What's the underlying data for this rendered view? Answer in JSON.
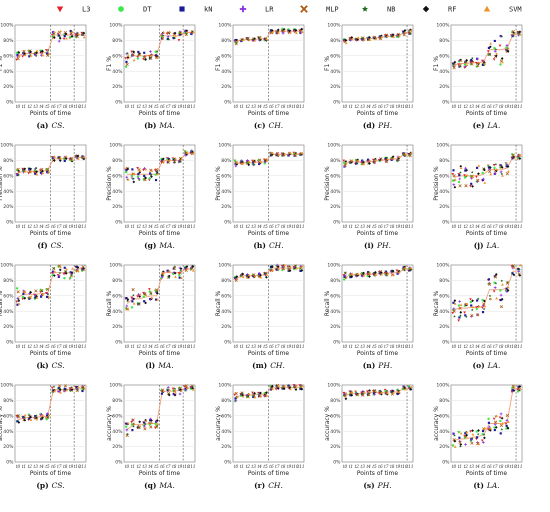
{
  "legend": {
    "entries": [
      {
        "name": "L3",
        "marker": "triangle-down",
        "color": "#e8202a"
      },
      {
        "name": "DT",
        "marker": "circle",
        "color": "#3ee84a"
      },
      {
        "name": "kN",
        "marker": "square",
        "color": "#1a1a9a"
      },
      {
        "name": "LR",
        "marker": "plus",
        "color": "#8a2be2"
      },
      {
        "name": "MLP",
        "marker": "x",
        "color": "#b05a10"
      },
      {
        "name": "NB",
        "marker": "star",
        "color": "#1a6b1a"
      },
      {
        "name": "RF",
        "marker": "diamond",
        "color": "#111111"
      },
      {
        "name": "SVM",
        "marker": "triangle-up",
        "color": "#f0922a"
      }
    ]
  },
  "chart_data": [
    {
      "type": "scatter",
      "caption_tag": "(a)",
      "caption_name": "CS.",
      "ylabel": "F1 %",
      "xlabel": "Points of time",
      "ylim": [
        0,
        100
      ],
      "yticks": [
        "0%",
        "20%",
        "40%",
        "60%",
        "80%",
        "100%"
      ],
      "xticks": [
        "t0",
        "t1",
        "t2",
        "t3",
        "t4",
        "t5",
        "t6",
        "t7",
        "t8",
        "t9",
        "t10",
        "t11"
      ],
      "vlines": [
        5,
        9
      ],
      "values": [
        60,
        63,
        63,
        63,
        64,
        64,
        87,
        87,
        87,
        87,
        87,
        87
      ],
      "spread": [
        8,
        4,
        4,
        4,
        4,
        4,
        4,
        8,
        6,
        6,
        3,
        3
      ]
    },
    {
      "type": "scatter",
      "caption_tag": "(b)",
      "caption_name": "MA.",
      "ylabel": "F1 %",
      "xlabel": "Points of time",
      "ylim": [
        0,
        100
      ],
      "yticks": [
        "0%",
        "20%",
        "40%",
        "60%",
        "80%",
        "100%"
      ],
      "xticks": [
        "t0",
        "t1",
        "t2",
        "t3",
        "t4",
        "t5",
        "t6",
        "t7",
        "t8",
        "t9",
        "t10",
        "t11"
      ],
      "vlines": [
        5,
        9
      ],
      "values": [
        55,
        60,
        60,
        60,
        61,
        61,
        86,
        86,
        86,
        86,
        90,
        91
      ],
      "spread": [
        10,
        6,
        5,
        5,
        5,
        5,
        5,
        6,
        6,
        6,
        3,
        3
      ]
    },
    {
      "type": "scatter",
      "caption_tag": "(c)",
      "caption_name": "CH.",
      "ylabel": "F1 %",
      "xlabel": "Points of time",
      "ylim": [
        0,
        100
      ],
      "yticks": [
        "0%",
        "20%",
        "40%",
        "60%",
        "80%",
        "100%"
      ],
      "xticks": [
        "t0",
        "t1",
        "t2",
        "t3",
        "t4",
        "t5",
        "t6",
        "t7",
        "t8",
        "t9",
        "t10",
        "t11"
      ],
      "vlines": [
        5
      ],
      "values": [
        78,
        81,
        81,
        81,
        82,
        82,
        92,
        92,
        92,
        92,
        92,
        92
      ],
      "spread": [
        3,
        2,
        2,
        2,
        2,
        2,
        3,
        3,
        3,
        3,
        3,
        3
      ]
    },
    {
      "type": "scatter",
      "caption_tag": "(d)",
      "caption_name": "PH.",
      "ylabel": "F1 %",
      "xlabel": "Points of time",
      "ylim": [
        0,
        100
      ],
      "yticks": [
        "0%",
        "20%",
        "40%",
        "60%",
        "80%",
        "100%"
      ],
      "xticks": [
        "t0",
        "t1",
        "t2",
        "t3",
        "t4",
        "t5",
        "t6",
        "t7",
        "t8",
        "t9",
        "t10",
        "t11"
      ],
      "vlines": [
        10
      ],
      "values": [
        79,
        82,
        82,
        82,
        82,
        83,
        84,
        85,
        86,
        86,
        90,
        91
      ],
      "spread": [
        3,
        2,
        2,
        2,
        2,
        2,
        2,
        2,
        2,
        2,
        3,
        3
      ]
    },
    {
      "type": "scatter",
      "caption_tag": "(e)",
      "caption_name": "LA.",
      "ylabel": "F1 %",
      "xlabel": "Points of time",
      "ylim": [
        0,
        100
      ],
      "yticks": [
        "0%",
        "20%",
        "40%",
        "60%",
        "80%",
        "100%"
      ],
      "xticks": [
        "t0",
        "t1",
        "t2",
        "t3",
        "t4",
        "t5",
        "t6",
        "t7",
        "t8",
        "t9",
        "t10",
        "t11"
      ],
      "vlines": [
        10
      ],
      "values": [
        48,
        50,
        50,
        51,
        51,
        52,
        68,
        68,
        68,
        70,
        88,
        88
      ],
      "spread": [
        4,
        5,
        6,
        6,
        6,
        6,
        8,
        14,
        20,
        6,
        4,
        4
      ]
    },
    {
      "type": "scatter",
      "caption_tag": "(f)",
      "caption_name": "CS.",
      "ylabel": "Precision %",
      "xlabel": "Points of time",
      "ylim": [
        0,
        100
      ],
      "yticks": [
        "0%",
        "20%",
        "40%",
        "60%",
        "80%",
        "100%"
      ],
      "xticks": [
        "t0",
        "t1",
        "t2",
        "t3",
        "t4",
        "t5",
        "t6",
        "t7",
        "t8",
        "t9",
        "t10",
        "t11"
      ],
      "vlines": [
        5,
        9
      ],
      "values": [
        64,
        66,
        66,
        66,
        66,
        67,
        82,
        82,
        82,
        82,
        84,
        84
      ],
      "spread": [
        5,
        4,
        4,
        4,
        4,
        4,
        3,
        3,
        3,
        3,
        2,
        2
      ]
    },
    {
      "type": "scatter",
      "caption_tag": "(g)",
      "caption_name": "MA.",
      "ylabel": "Precision %",
      "xlabel": "Points of time",
      "ylim": [
        0,
        100
      ],
      "yticks": [
        "0%",
        "20%",
        "40%",
        "60%",
        "80%",
        "100%"
      ],
      "xticks": [
        "t0",
        "t1",
        "t2",
        "t3",
        "t4",
        "t5",
        "t6",
        "t7",
        "t8",
        "t9",
        "t10",
        "t11"
      ],
      "vlines": [
        5,
        9
      ],
      "values": [
        62,
        62,
        62,
        62,
        62,
        62,
        80,
        80,
        80,
        80,
        89,
        90
      ],
      "spread": [
        8,
        10,
        8,
        8,
        8,
        8,
        3,
        3,
        3,
        3,
        3,
        3
      ]
    },
    {
      "type": "scatter",
      "caption_tag": "(h)",
      "caption_name": "CH.",
      "ylabel": "Precision %",
      "xlabel": "Points of time",
      "ylim": [
        0,
        100
      ],
      "yticks": [
        "0%",
        "20%",
        "40%",
        "60%",
        "80%",
        "100%"
      ],
      "xticks": [
        "t0",
        "t1",
        "t2",
        "t3",
        "t4",
        "t5",
        "t6",
        "t7",
        "t8",
        "t9",
        "t10",
        "t11"
      ],
      "vlines": [
        5
      ],
      "values": [
        76,
        77,
        77,
        77,
        78,
        78,
        88,
        88,
        88,
        88,
        88,
        88
      ],
      "spread": [
        4,
        3,
        3,
        3,
        3,
        3,
        2,
        2,
        2,
        2,
        2,
        2
      ]
    },
    {
      "type": "scatter",
      "caption_tag": "(i)",
      "caption_name": "PH.",
      "ylabel": "Precision %",
      "xlabel": "Points of time",
      "ylim": [
        0,
        100
      ],
      "yticks": [
        "0%",
        "20%",
        "40%",
        "60%",
        "80%",
        "100%"
      ],
      "xticks": [
        "t0",
        "t1",
        "t2",
        "t3",
        "t4",
        "t5",
        "t6",
        "t7",
        "t8",
        "t9",
        "t10",
        "t11"
      ],
      "vlines": [
        10
      ],
      "values": [
        76,
        78,
        78,
        78,
        78,
        79,
        80,
        81,
        82,
        82,
        88,
        88
      ],
      "spread": [
        4,
        3,
        3,
        3,
        3,
        3,
        3,
        3,
        3,
        3,
        2,
        2
      ]
    },
    {
      "type": "scatter",
      "caption_tag": "(j)",
      "caption_name": "LA.",
      "ylabel": "Precision %",
      "xlabel": "Points of time",
      "ylim": [
        0,
        100
      ],
      "yticks": [
        "0%",
        "20%",
        "40%",
        "60%",
        "80%",
        "100%"
      ],
      "xticks": [
        "t0",
        "t1",
        "t2",
        "t3",
        "t4",
        "t5",
        "t6",
        "t7",
        "t8",
        "t9",
        "t10",
        "t11"
      ],
      "vlines": [
        10
      ],
      "values": [
        58,
        60,
        60,
        60,
        60,
        62,
        68,
        68,
        68,
        70,
        85,
        85
      ],
      "spread": [
        14,
        14,
        14,
        14,
        14,
        12,
        8,
        8,
        8,
        8,
        3,
        3
      ]
    },
    {
      "type": "scatter",
      "caption_tag": "(k)",
      "caption_name": "CS.",
      "ylabel": "Recall %",
      "xlabel": "Points of time",
      "ylim": [
        0,
        100
      ],
      "yticks": [
        "0%",
        "20%",
        "40%",
        "60%",
        "80%",
        "100%"
      ],
      "xticks": [
        "t0",
        "t1",
        "t2",
        "t3",
        "t4",
        "t5",
        "t6",
        "t7",
        "t8",
        "t9",
        "t10",
        "t11"
      ],
      "vlines": [
        5,
        9
      ],
      "values": [
        58,
        62,
        62,
        62,
        63,
        63,
        90,
        90,
        90,
        90,
        95,
        95
      ],
      "spread": [
        12,
        6,
        6,
        6,
        6,
        6,
        8,
        10,
        10,
        8,
        3,
        3
      ]
    },
    {
      "type": "scatter",
      "caption_tag": "(l)",
      "caption_name": "MA.",
      "ylabel": "Recall %",
      "xlabel": "Points of time",
      "ylim": [
        0,
        100
      ],
      "yticks": [
        "0%",
        "20%",
        "40%",
        "60%",
        "80%",
        "100%"
      ],
      "xticks": [
        "t0",
        "t1",
        "t2",
        "t3",
        "t4",
        "t5",
        "t6",
        "t7",
        "t8",
        "t9",
        "t10",
        "t11"
      ],
      "vlines": [
        5,
        9
      ],
      "values": [
        50,
        56,
        56,
        58,
        60,
        60,
        90,
        90,
        90,
        90,
        95,
        95
      ],
      "spread": [
        8,
        14,
        8,
        10,
        10,
        8,
        8,
        8,
        8,
        8,
        4,
        4
      ]
    },
    {
      "type": "scatter",
      "caption_tag": "(m)",
      "caption_name": "CH.",
      "ylabel": "Recall %",
      "xlabel": "Points of time",
      "ylim": [
        0,
        100
      ],
      "yticks": [
        "0%",
        "20%",
        "40%",
        "60%",
        "80%",
        "100%"
      ],
      "xticks": [
        "t0",
        "t1",
        "t2",
        "t3",
        "t4",
        "t5",
        "t6",
        "t7",
        "t8",
        "t9",
        "t10",
        "t11"
      ],
      "vlines": [
        5
      ],
      "values": [
        82,
        86,
        86,
        86,
        87,
        87,
        96,
        96,
        96,
        96,
        96,
        96
      ],
      "spread": [
        4,
        3,
        3,
        3,
        3,
        3,
        4,
        4,
        4,
        4,
        4,
        4
      ]
    },
    {
      "type": "scatter",
      "caption_tag": "(n)",
      "caption_name": "PH.",
      "ylabel": "Recall %",
      "xlabel": "Points of time",
      "ylim": [
        0,
        100
      ],
      "yticks": [
        "0%",
        "20%",
        "40%",
        "60%",
        "80%",
        "100%"
      ],
      "xticks": [
        "t0",
        "t1",
        "t2",
        "t3",
        "t4",
        "t5",
        "t6",
        "t7",
        "t8",
        "t9",
        "t10",
        "t11"
      ],
      "vlines": [
        10
      ],
      "values": [
        84,
        87,
        87,
        87,
        88,
        88,
        89,
        89,
        90,
        90,
        95,
        95
      ],
      "spread": [
        8,
        3,
        3,
        3,
        3,
        3,
        3,
        3,
        3,
        3,
        3,
        3
      ]
    },
    {
      "type": "scatter",
      "caption_tag": "(o)",
      "caption_name": "LA.",
      "ylabel": "Recall %",
      "xlabel": "Points of time",
      "ylim": [
        0,
        100
      ],
      "yticks": [
        "0%",
        "20%",
        "40%",
        "60%",
        "80%",
        "100%"
      ],
      "xticks": [
        "t0",
        "t1",
        "t2",
        "t3",
        "t4",
        "t5",
        "t6",
        "t7",
        "t8",
        "t9",
        "t10",
        "t11"
      ],
      "vlines": [
        10
      ],
      "values": [
        42,
        44,
        44,
        45,
        45,
        46,
        68,
        68,
        68,
        70,
        92,
        92
      ],
      "spread": [
        14,
        18,
        12,
        12,
        12,
        10,
        14,
        20,
        28,
        8,
        8,
        8
      ]
    },
    {
      "type": "scatter",
      "caption_tag": "(p)",
      "caption_name": "CS.",
      "ylabel": "accuracy %",
      "xlabel": "Points of time",
      "ylim": [
        0,
        100
      ],
      "yticks": [
        "0%",
        "20%",
        "40%",
        "60%",
        "80%",
        "100%"
      ],
      "xticks": [
        "t0",
        "t1",
        "t2",
        "t3",
        "t4",
        "t5",
        "t6",
        "t7",
        "t8",
        "t9",
        "t10",
        "t11"
      ],
      "vlines": [
        5,
        9
      ],
      "values": [
        55,
        57,
        58,
        58,
        59,
        59,
        94,
        94,
        94,
        94,
        95,
        95
      ],
      "spread": [
        6,
        4,
        4,
        4,
        4,
        4,
        4,
        5,
        5,
        5,
        3,
        3
      ]
    },
    {
      "type": "scatter",
      "caption_tag": "(q)",
      "caption_name": "MA.",
      "ylabel": "accuracy %",
      "xlabel": "Points of time",
      "ylim": [
        0,
        100
      ],
      "yticks": [
        "0%",
        "20%",
        "40%",
        "60%",
        "80%",
        "100%"
      ],
      "xticks": [
        "t0",
        "t1",
        "t2",
        "t3",
        "t4",
        "t5",
        "t6",
        "t7",
        "t8",
        "t9",
        "t10",
        "t11"
      ],
      "vlines": [
        5,
        9
      ],
      "values": [
        42,
        48,
        49,
        49,
        50,
        50,
        92,
        92,
        92,
        93,
        96,
        96
      ],
      "spread": [
        10,
        7,
        6,
        6,
        6,
        6,
        5,
        5,
        5,
        5,
        3,
        3
      ]
    },
    {
      "type": "scatter",
      "caption_tag": "(r)",
      "caption_name": "CH.",
      "ylabel": "accuracy %",
      "xlabel": "Points of time",
      "ylim": [
        0,
        100
      ],
      "yticks": [
        "0%",
        "20%",
        "40%",
        "60%",
        "80%",
        "100%"
      ],
      "xticks": [
        "t0",
        "t1",
        "t2",
        "t3",
        "t4",
        "t5",
        "t6",
        "t7",
        "t8",
        "t9",
        "t10",
        "t11"
      ],
      "vlines": [
        5
      ],
      "values": [
        84,
        87,
        87,
        87,
        88,
        88,
        97,
        97,
        97,
        97,
        97,
        97
      ],
      "spread": [
        5,
        3,
        3,
        3,
        3,
        3,
        3,
        3,
        3,
        3,
        3,
        3
      ]
    },
    {
      "type": "scatter",
      "caption_tag": "(s)",
      "caption_name": "PH.",
      "ylabel": "accuracy %",
      "xlabel": "Points of time",
      "ylim": [
        0,
        100
      ],
      "yticks": [
        "0%",
        "20%",
        "40%",
        "60%",
        "80%",
        "100%"
      ],
      "xticks": [
        "t0",
        "t1",
        "t2",
        "t3",
        "t4",
        "t5",
        "t6",
        "t7",
        "t8",
        "t9",
        "t10",
        "t11"
      ],
      "vlines": [
        10
      ],
      "values": [
        86,
        89,
        89,
        89,
        90,
        90,
        90,
        91,
        91,
        91,
        96,
        96
      ],
      "spread": [
        4,
        3,
        3,
        3,
        3,
        3,
        3,
        3,
        3,
        3,
        2,
        2
      ]
    },
    {
      "type": "scatter",
      "caption_tag": "(t)",
      "caption_name": "LA.",
      "ylabel": "accuracy %",
      "xlabel": "Points of time",
      "ylim": [
        0,
        100
      ],
      "yticks": [
        "0%",
        "20%",
        "40%",
        "60%",
        "80%",
        "100%"
      ],
      "xticks": [
        "t0",
        "t1",
        "t2",
        "t3",
        "t4",
        "t5",
        "t6",
        "t7",
        "t8",
        "t9",
        "t10",
        "t11"
      ],
      "vlines": [
        10
      ],
      "values": [
        28,
        30,
        30,
        32,
        33,
        35,
        50,
        50,
        50,
        52,
        95,
        95
      ],
      "spread": [
        10,
        10,
        10,
        10,
        10,
        10,
        10,
        12,
        14,
        10,
        4,
        4
      ]
    }
  ]
}
